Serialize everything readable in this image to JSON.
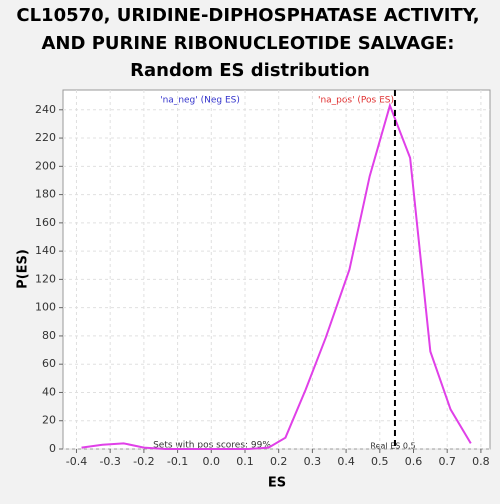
{
  "chart_data": {
    "type": "line",
    "title": [
      "CL10570, URIDINE-DIPHOSPHATASE ACTIVITY,",
      "AND PURINE RIBONUCLEOTIDE SALVAGE:",
      "Random ES distribution"
    ],
    "x_label": "ES",
    "y_label": "P(ES)",
    "x": [
      -0.385,
      -0.323,
      -0.26,
      -0.2,
      -0.136,
      -0.074,
      -0.012,
      0.05,
      0.11,
      0.17,
      0.22,
      0.28,
      0.34,
      0.41,
      0.47,
      0.53,
      0.59,
      0.65,
      0.71,
      0.77
    ],
    "series": [
      {
        "color": "#e040e8",
        "values": [
          1,
          3,
          4,
          1,
          0,
          0,
          0,
          0,
          0,
          1,
          8,
          42,
          79,
          127,
          193,
          243,
          206,
          69,
          28,
          4
        ]
      }
    ],
    "xlim": [
      -0.44,
      0.827
    ],
    "ylim": [
      0,
      254
    ],
    "xticks": [
      -0.4,
      -0.3,
      -0.2,
      -0.1,
      {
        "value": 0,
        "label": "0.0"
      },
      0.1,
      0.2,
      0.3,
      0.4,
      0.5,
      0.6,
      0.7,
      0.8
    ],
    "yticks": [
      0,
      20,
      40,
      60,
      80,
      100,
      120,
      140,
      160,
      180,
      200,
      220,
      240
    ],
    "grid": true,
    "vline": 0.545,
    "annotations": {
      "neg": "'na_neg' (Neg ES)",
      "pos": "'na_pos' (Pos ES)",
      "sets": "Sets with pos scores: 99%",
      "real": "Real ES 0.5"
    }
  }
}
